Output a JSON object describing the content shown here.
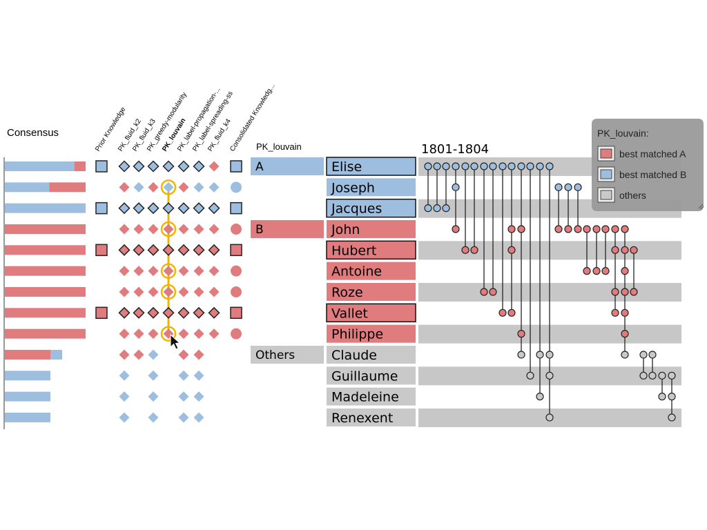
{
  "consensus": {
    "title": "Consensus",
    "bars": [
      [
        0.86,
        0.14
      ],
      [
        0.55,
        0.45
      ],
      [
        1.0,
        0.0
      ],
      [
        0.0,
        1.0
      ],
      [
        0.0,
        1.0
      ],
      [
        0.0,
        1.0
      ],
      [
        0.0,
        1.0
      ],
      [
        0.0,
        1.0
      ],
      [
        0.0,
        1.0
      ],
      [
        0.82,
        0.18
      ],
      [
        1.0,
        0.0
      ],
      [
        1.0,
        0.0
      ],
      [
        1.0,
        0.0
      ]
    ],
    "bar_order": [
      "red_first_when_mixed_minority"
    ],
    "colors": {
      "red": "#e07b7e",
      "blue": "#9ebee0"
    }
  },
  "columns": [
    {
      "id": "prior",
      "label": "Prior Knowledge",
      "bold": false
    },
    {
      "id": "fluid_k2",
      "label": "PK_fluid_k2",
      "bold": false
    },
    {
      "id": "fluid_k3",
      "label": "PK_fluid_k3",
      "bold": false
    },
    {
      "id": "greedy",
      "label": "PK_greedy-modularity",
      "bold": false
    },
    {
      "id": "louvain",
      "label": "PK_louvain",
      "bold": true
    },
    {
      "id": "label_prop",
      "label": "PK_label-propagation-...",
      "bold": false
    },
    {
      "id": "label_spread",
      "label": "PK_label-spreading-ss",
      "bold": false
    },
    {
      "id": "fluid_k4",
      "label": "PK_fluid_k4",
      "bold": false
    },
    {
      "id": "consolidated",
      "label": "Consolidated Knowledg...",
      "bold": false
    }
  ],
  "matrix": [
    [
      "sq-blue",
      "d-blue-o",
      "d-blue-o",
      "d-blue-o",
      "d-blue-o",
      "d-blue-o",
      "d-blue-o",
      "d-red",
      "sq-blue"
    ],
    [
      "",
      "d-red",
      "d-blue",
      "d-red",
      "d-blue",
      "d-red",
      "d-blue",
      "d-blue",
      "c-blue"
    ],
    [
      "sq-blue",
      "d-blue-o",
      "d-blue-o",
      "d-blue-o",
      "d-blue-o",
      "d-blue-o",
      "d-blue-o",
      "d-blue-o",
      "sq-blue"
    ],
    [
      "",
      "d-red",
      "d-red",
      "d-red",
      "d-red",
      "d-red",
      "d-red",
      "d-red",
      "c-red"
    ],
    [
      "sq-red",
      "d-red-o",
      "d-red-o",
      "d-red-o",
      "d-red-o",
      "d-red-o",
      "d-red-o",
      "d-red-o",
      "sq-red"
    ],
    [
      "",
      "d-red",
      "d-red",
      "d-red",
      "d-red",
      "d-red",
      "d-red",
      "d-red",
      "c-red"
    ],
    [
      "",
      "d-red",
      "d-red",
      "d-red",
      "d-red",
      "d-red",
      "d-red",
      "d-red",
      "c-red"
    ],
    [
      "sq-red",
      "d-red-o",
      "d-red-o",
      "d-red-o",
      "d-red-o",
      "d-red-o",
      "d-red-o",
      "d-red-o",
      "sq-red"
    ],
    [
      "",
      "d-red",
      "d-red",
      "d-red",
      "d-red",
      "d-red",
      "d-red",
      "d-red",
      "c-red"
    ],
    [
      "",
      "d-red",
      "d-red",
      "d-blue",
      "",
      "d-red",
      "d-red",
      "",
      ""
    ],
    [
      "",
      "d-blue",
      "",
      "d-blue",
      "",
      "d-blue",
      "d-blue",
      "",
      ""
    ],
    [
      "",
      "d-blue",
      "",
      "d-blue",
      "",
      "d-blue",
      "d-blue",
      "",
      ""
    ],
    [
      "",
      "d-blue",
      "",
      "d-blue",
      "",
      "d-blue",
      "d-blue",
      "",
      ""
    ]
  ],
  "highlight_rows": [
    1,
    3,
    5,
    6,
    8
  ],
  "partition": {
    "title": "PK_louvain",
    "groups": [
      {
        "label": "A",
        "color": "blue",
        "start": 0,
        "end": 0
      },
      {
        "label": "B",
        "color": "red",
        "start": 3,
        "end": 3
      },
      {
        "label": "Others",
        "color": "gray",
        "start": 9,
        "end": 9
      }
    ]
  },
  "names": [
    {
      "name": "Elise",
      "color": "blue",
      "outlined": true
    },
    {
      "name": "Joseph",
      "color": "blue",
      "outlined": false
    },
    {
      "name": "Jacques",
      "color": "blue",
      "outlined": true
    },
    {
      "name": "John",
      "color": "red",
      "outlined": false
    },
    {
      "name": "Hubert",
      "color": "red",
      "outlined": true
    },
    {
      "name": "Antoine",
      "color": "red",
      "outlined": false
    },
    {
      "name": "Roze",
      "color": "red",
      "outlined": false
    },
    {
      "name": "Vallet",
      "color": "red",
      "outlined": true
    },
    {
      "name": "Philippe",
      "color": "red",
      "outlined": false
    },
    {
      "name": "Claude",
      "color": "gray",
      "outlined": false
    },
    {
      "name": "Guillaume",
      "color": "gray",
      "outlined": false
    },
    {
      "name": "Madeleine",
      "color": "gray",
      "outlined": false
    },
    {
      "name": "Renexent",
      "color": "gray",
      "outlined": false
    }
  ],
  "timeline": {
    "title": "1801-1804",
    "events": [
      {
        "rows": [
          0,
          2
        ],
        "color": "blue"
      },
      {
        "rows": [
          0,
          2
        ],
        "color": "blue"
      },
      {
        "rows": [
          0,
          2
        ],
        "color": "blue"
      },
      {
        "rows": [
          0,
          1
        ],
        "color": "blue"
      },
      {
        "rows": [
          0,
          3
        ],
        "color": "blue",
        "node_rows": [
          0
        ]
      },
      {
        "rows": [
          0,
          4
        ],
        "color": "blue",
        "node_rows": [
          0
        ]
      },
      {
        "rows": [
          0,
          6
        ],
        "color": "blue",
        "node_rows": [
          0
        ]
      },
      {
        "rows": [
          0,
          6
        ],
        "color": "blue",
        "node_rows": [
          0
        ]
      },
      {
        "rows": [
          0,
          7
        ],
        "color": "blue",
        "node_rows": [
          0
        ]
      },
      {
        "rows": [
          0,
          7
        ],
        "color": "blue",
        "node_rows": [
          0
        ]
      },
      {
        "rows": [
          0,
          9
        ],
        "color": "blue",
        "node_rows": [
          0
        ]
      },
      {
        "rows": [
          0,
          11
        ],
        "color": "blue",
        "node_rows": [
          0
        ]
      },
      {
        "rows": [
          0,
          12
        ],
        "color": "blue",
        "node_rows": [
          0
        ]
      },
      {
        "rows": [
          1,
          3
        ],
        "color": "blue"
      },
      {
        "rows": [
          1,
          3
        ],
        "color": "blue"
      },
      {
        "rows": [
          1,
          3
        ],
        "color": "blue"
      }
    ],
    "colors": {
      "red": "#e07b7e",
      "blue": "#9ebee0",
      "gray": "#b3b3b3",
      "row_band": "#c7c7c7"
    }
  },
  "legend": {
    "title": "PK_louvain:",
    "items": [
      {
        "label": "best matched A",
        "color": "#e07b7e"
      },
      {
        "label": "best matched B",
        "color": "#9ebee0"
      },
      {
        "label": "others",
        "color": "#c9c9c9"
      }
    ]
  }
}
